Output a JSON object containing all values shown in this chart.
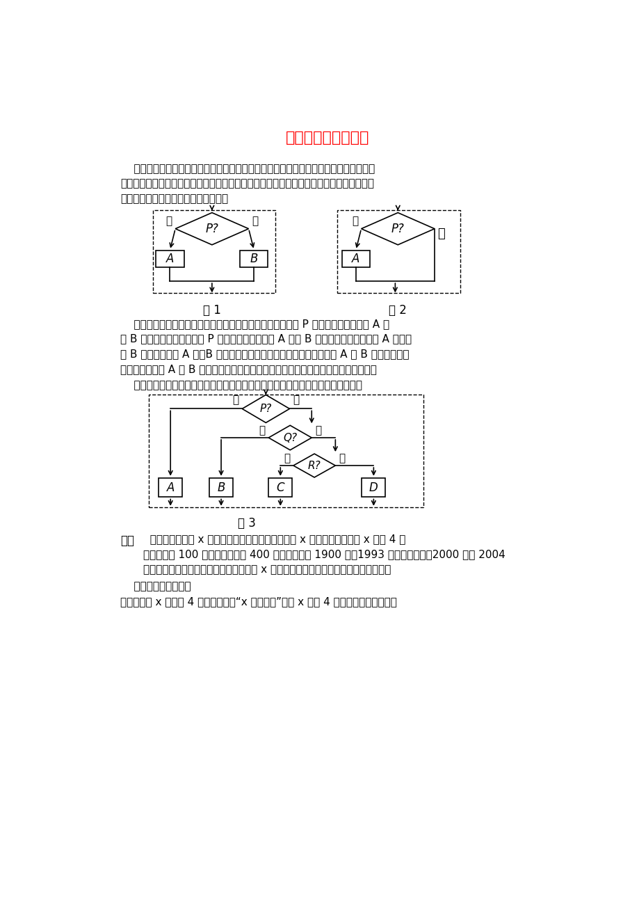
{
  "title": "条件结构及应用举例",
  "title_color": "#FF0000",
  "bg_color": "#FFFFFF",
  "text_color": "#000000",
  "fig_label1": "图 1",
  "fig_label2": "图 2",
  "fig_label3": "图 3"
}
